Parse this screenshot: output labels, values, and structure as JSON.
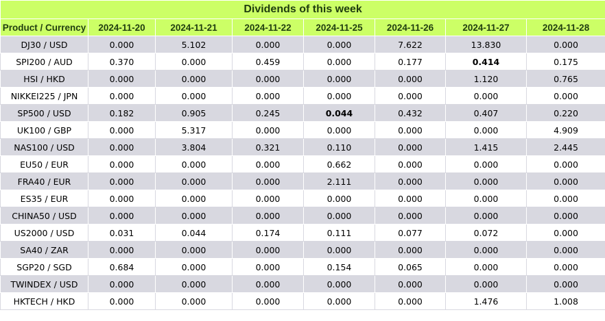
{
  "title": "Dividends of this week",
  "columns": [
    "Product / Currency",
    "2024-11-20",
    "2024-11-21",
    "2024-11-22",
    "2024-11-25",
    "2024-11-26",
    "2024-11-27",
    "2024-11-28"
  ],
  "rows": [
    {
      "product": "DJ30 / USD",
      "values": [
        "0.000",
        "5.102",
        "0.000",
        "0.000",
        "7.622",
        "13.830",
        "0.000"
      ],
      "bold": []
    },
    {
      "product": "SPI200 / AUD",
      "values": [
        "0.370",
        "0.000",
        "0.459",
        "0.000",
        "0.177",
        "0.414",
        "0.175"
      ],
      "bold": [
        5
      ]
    },
    {
      "product": "HSI / HKD",
      "values": [
        "0.000",
        "0.000",
        "0.000",
        "0.000",
        "0.000",
        "1.120",
        "0.765"
      ],
      "bold": []
    },
    {
      "product": "NIKKEI225 / JPN",
      "values": [
        "0.000",
        "0.000",
        "0.000",
        "0.000",
        "0.000",
        "0.000",
        "0.000"
      ],
      "bold": []
    },
    {
      "product": "SP500 / USD",
      "values": [
        "0.182",
        "0.905",
        "0.245",
        "0.044",
        "0.432",
        "0.407",
        "0.220"
      ],
      "bold": [
        3
      ]
    },
    {
      "product": "UK100 / GBP",
      "values": [
        "0.000",
        "5.317",
        "0.000",
        "0.000",
        "0.000",
        "0.000",
        "4.909"
      ],
      "bold": []
    },
    {
      "product": "NAS100 / USD",
      "values": [
        "0.000",
        "3.804",
        "0.321",
        "0.110",
        "0.000",
        "1.415",
        "2.445"
      ],
      "bold": []
    },
    {
      "product": "EU50 / EUR",
      "values": [
        "0.000",
        "0.000",
        "0.000",
        "0.662",
        "0.000",
        "0.000",
        "0.000"
      ],
      "bold": []
    },
    {
      "product": "FRA40 / EUR",
      "values": [
        "0.000",
        "0.000",
        "0.000",
        "2.111",
        "0.000",
        "0.000",
        "0.000"
      ],
      "bold": []
    },
    {
      "product": "ES35 / EUR",
      "values": [
        "0.000",
        "0.000",
        "0.000",
        "0.000",
        "0.000",
        "0.000",
        "0.000"
      ],
      "bold": []
    },
    {
      "product": "CHINA50 / USD",
      "values": [
        "0.000",
        "0.000",
        "0.000",
        "0.000",
        "0.000",
        "0.000",
        "0.000"
      ],
      "bold": []
    },
    {
      "product": "US2000 / USD",
      "values": [
        "0.031",
        "0.044",
        "0.174",
        "0.111",
        "0.077",
        "0.072",
        "0.000"
      ],
      "bold": []
    },
    {
      "product": "SA40 / ZAR",
      "values": [
        "0.000",
        "0.000",
        "0.000",
        "0.000",
        "0.000",
        "0.000",
        "0.000"
      ],
      "bold": []
    },
    {
      "product": "SGP20 / SGD",
      "values": [
        "0.684",
        "0.000",
        "0.000",
        "0.154",
        "0.065",
        "0.000",
        "0.000"
      ],
      "bold": []
    },
    {
      "product": "TWINDEX / USD",
      "values": [
        "0.000",
        "0.000",
        "0.000",
        "0.000",
        "0.000",
        "0.000",
        "0.000"
      ],
      "bold": []
    },
    {
      "product": "HKTECH / HKD",
      "values": [
        "0.000",
        "0.000",
        "0.000",
        "0.000",
        "0.000",
        "1.476",
        "1.008"
      ],
      "bold": []
    }
  ]
}
